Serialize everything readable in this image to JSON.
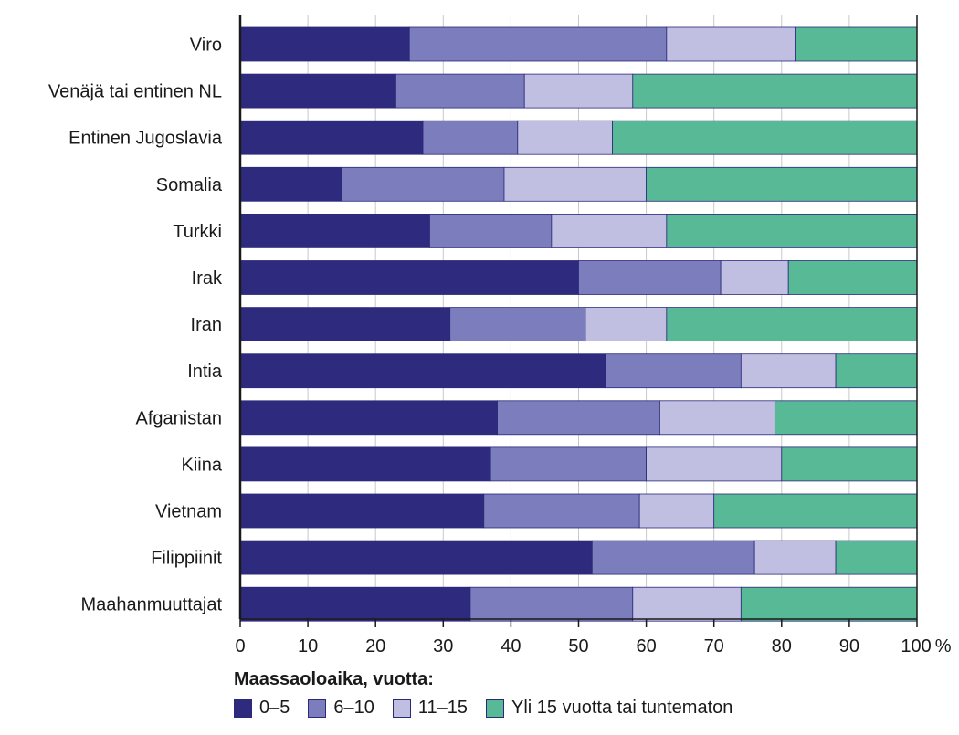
{
  "chart_data": {
    "type": "bar",
    "orientation": "horizontal",
    "stacked": true,
    "categories": [
      "Viro",
      "Venäjä tai entinen NL",
      "Entinen Jugoslavia",
      "Somalia",
      "Turkki",
      "Irak",
      "Iran",
      "Intia",
      "Afganistan",
      "Kiina",
      "Vietnam",
      "Filippiinit",
      "Maahanmuuttajat"
    ],
    "series": [
      {
        "name": "0–5",
        "color": "#2e2a7e",
        "values": [
          25,
          23,
          27,
          15,
          28,
          50,
          31,
          54,
          38,
          37,
          36,
          52,
          34
        ]
      },
      {
        "name": "6–10",
        "color": "#7b7dbd",
        "values": [
          38,
          19,
          14,
          24,
          18,
          21,
          20,
          20,
          24,
          23,
          23,
          24,
          24
        ]
      },
      {
        "name": "11–15",
        "color": "#c0bfe2",
        "values": [
          19,
          16,
          14,
          21,
          17,
          10,
          12,
          14,
          17,
          20,
          11,
          12,
          16
        ]
      },
      {
        "name": "Yli 15 vuotta tai tuntematon",
        "color": "#57b995",
        "values": [
          18,
          42,
          45,
          40,
          37,
          19,
          37,
          12,
          21,
          20,
          30,
          12,
          26
        ]
      }
    ],
    "xlim": [
      0,
      100
    ],
    "xticks": [
      "0",
      "10",
      "20",
      "30",
      "40",
      "50",
      "60",
      "70",
      "80",
      "90",
      "100"
    ],
    "x_unit": "%",
    "grid": true,
    "legend_title": "Maassaoloaika, vuotta:",
    "legend_position": "bottom-left"
  }
}
